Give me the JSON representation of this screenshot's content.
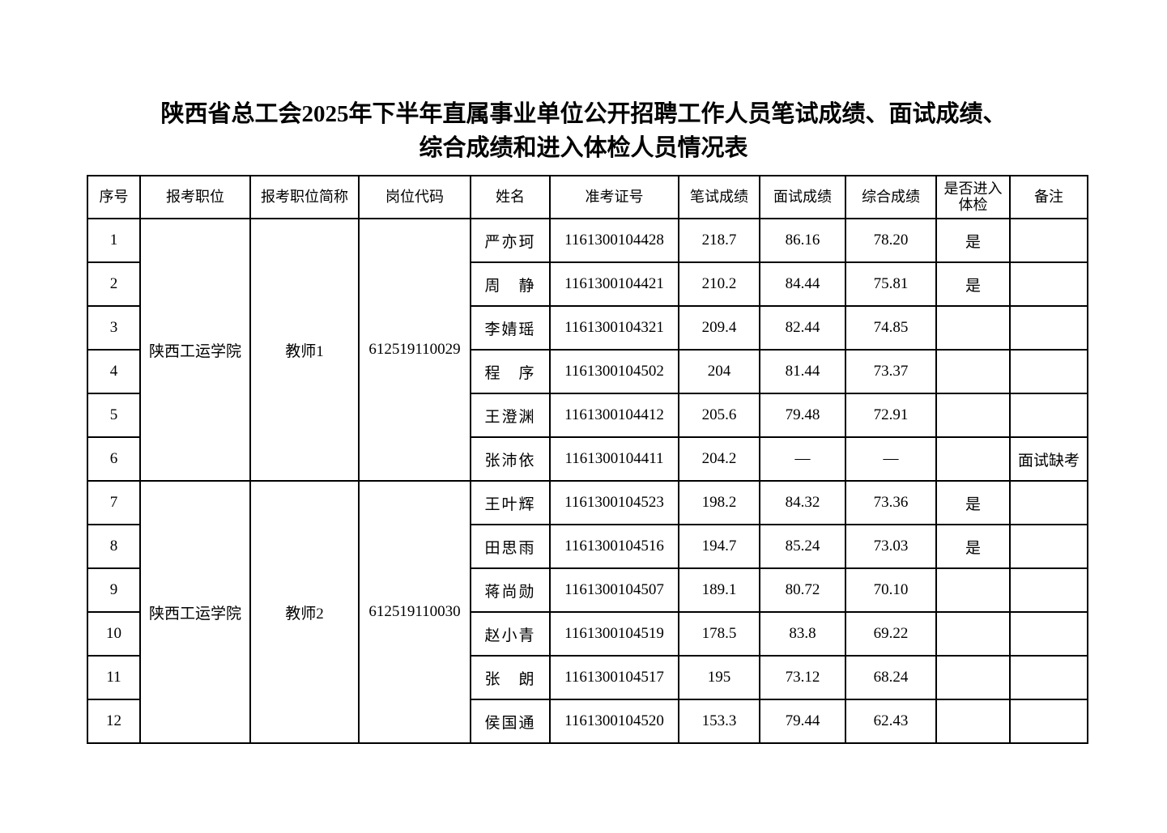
{
  "title_line1": "陕西省总工会2025年下半年直属事业单位公开招聘工作人员笔试成绩、面试成绩、",
  "title_line2": "综合成绩和进入体检人员情况表",
  "headers": [
    "序号",
    "报考职位",
    "报考职位简称",
    "岗位代码",
    "姓名",
    "准考证号",
    "笔试成绩",
    "面试成绩",
    "综合成绩",
    "是否进入 体检",
    "备注"
  ],
  "groups": [
    {
      "position": "陕西工运学院",
      "short": "教师1",
      "code": "612519110029",
      "rows": [
        {
          "no": "1",
          "name": "严亦珂",
          "id": "1161300104428",
          "written": "218.7",
          "interview": "86.16",
          "total": "78.20",
          "exam": "是",
          "note": ""
        },
        {
          "no": "2",
          "name": "周　静",
          "id": "1161300104421",
          "written": "210.2",
          "interview": "84.44",
          "total": "75.81",
          "exam": "是",
          "note": ""
        },
        {
          "no": "3",
          "name": "李婧瑶",
          "id": "1161300104321",
          "written": "209.4",
          "interview": "82.44",
          "total": "74.85",
          "exam": "",
          "note": ""
        },
        {
          "no": "4",
          "name": "程　序",
          "id": "1161300104502",
          "written": "204",
          "interview": "81.44",
          "total": "73.37",
          "exam": "",
          "note": ""
        },
        {
          "no": "5",
          "name": "王澄渊",
          "id": "1161300104412",
          "written": "205.6",
          "interview": "79.48",
          "total": "72.91",
          "exam": "",
          "note": ""
        },
        {
          "no": "6",
          "name": "张沛依",
          "id": "1161300104411",
          "written": "204.2",
          "interview": "—",
          "total": "—",
          "exam": "",
          "note": "面试缺考"
        }
      ]
    },
    {
      "position": "陕西工运学院",
      "short": "教师2",
      "code": "612519110030",
      "rows": [
        {
          "no": "7",
          "name": "王叶辉",
          "id": "1161300104523",
          "written": "198.2",
          "interview": "84.32",
          "total": "73.36",
          "exam": "是",
          "note": ""
        },
        {
          "no": "8",
          "name": "田思雨",
          "id": "1161300104516",
          "written": "194.7",
          "interview": "85.24",
          "total": "73.03",
          "exam": "是",
          "note": ""
        },
        {
          "no": "9",
          "name": "蒋尚勋",
          "id": "1161300104507",
          "written": "189.1",
          "interview": "80.72",
          "total": "70.10",
          "exam": "",
          "note": ""
        },
        {
          "no": "10",
          "name": "赵小青",
          "id": "1161300104519",
          "written": "178.5",
          "interview": "83.8",
          "total": "69.22",
          "exam": "",
          "note": ""
        },
        {
          "no": "11",
          "name": "张　朗",
          "id": "1161300104517",
          "written": "195",
          "interview": "73.12",
          "total": "68.24",
          "exam": "",
          "note": ""
        },
        {
          "no": "12",
          "name": "侯国通",
          "id": "1161300104520",
          "written": "153.3",
          "interview": "79.44",
          "total": "62.43",
          "exam": "",
          "note": ""
        }
      ]
    }
  ]
}
